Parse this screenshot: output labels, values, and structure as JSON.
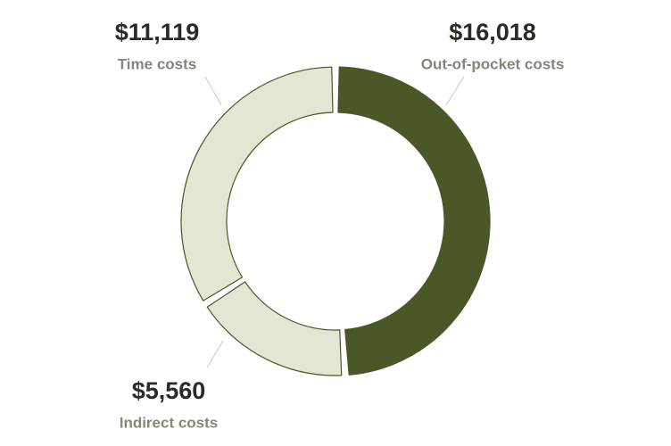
{
  "chart_data": {
    "type": "donut",
    "categories": [
      "Out-of-pocket costs",
      "Indirect costs",
      "Time costs"
    ],
    "values": [
      16018,
      5560,
      11119
    ],
    "value_labels": [
      "$16,018",
      "$5,560",
      "$11,119"
    ],
    "colors": [
      "#4a5727",
      "#e1e7d2",
      "#e1e7d2"
    ]
  }
}
